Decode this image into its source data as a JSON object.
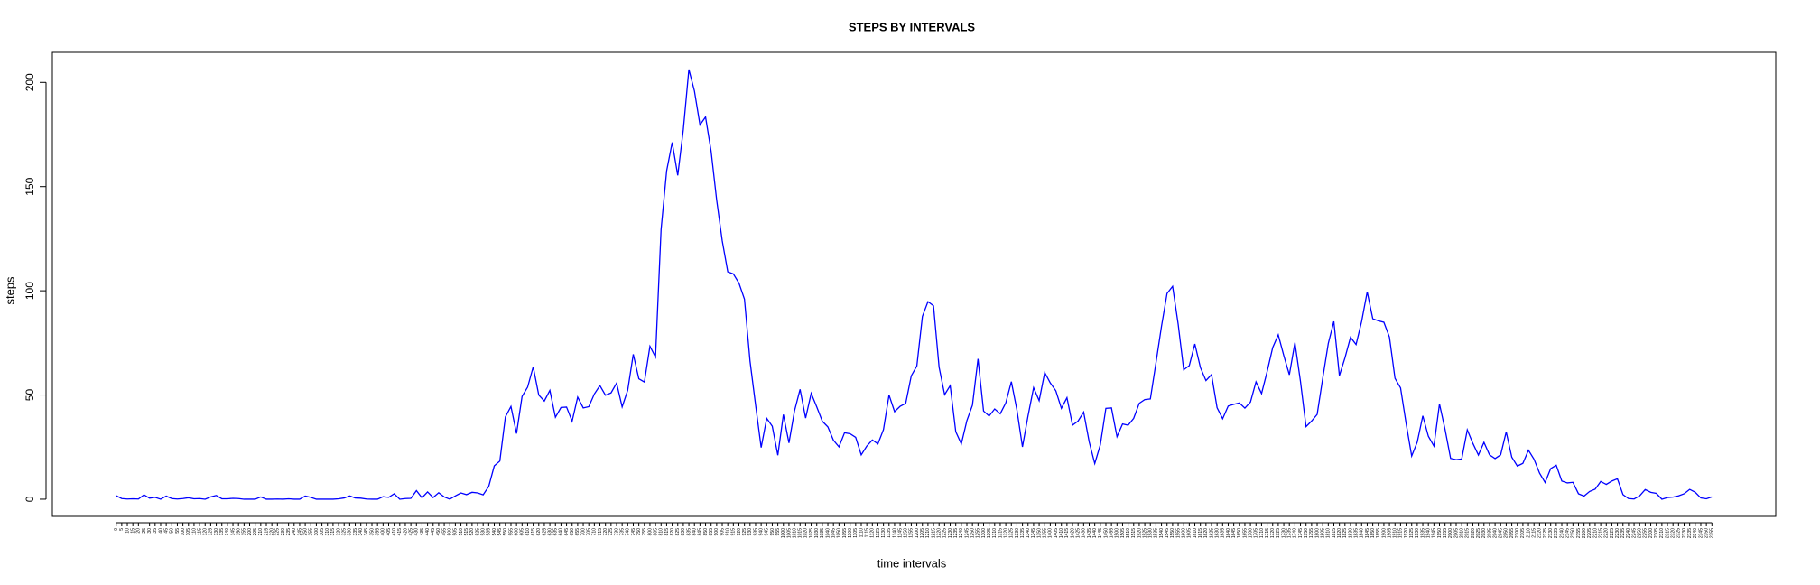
{
  "chart_data": {
    "type": "line",
    "title": "STEPS BY INTERVALS",
    "x_label": "time intervals",
    "y_label": "steps",
    "categories": [
      "0",
      "5",
      "10",
      "15",
      "20",
      "25",
      "30",
      "35",
      "40",
      "45",
      "50",
      "55",
      "100",
      "105",
      "110",
      "115",
      "120",
      "125",
      "130",
      "135",
      "140",
      "145",
      "150",
      "155",
      "200",
      "205",
      "210",
      "215",
      "220",
      "225",
      "230",
      "235",
      "240",
      "245",
      "250",
      "255",
      "300",
      "305",
      "310",
      "315",
      "320",
      "325",
      "330",
      "335",
      "340",
      "345",
      "350",
      "355",
      "400",
      "405",
      "410",
      "415",
      "420",
      "425",
      "430",
      "435",
      "440",
      "445",
      "450",
      "455",
      "500",
      "505",
      "510",
      "515",
      "520",
      "525",
      "530",
      "535",
      "540",
      "545",
      "550",
      "555",
      "600",
      "605",
      "610",
      "615",
      "620",
      "625",
      "630",
      "635",
      "640",
      "645",
      "650",
      "655",
      "700",
      "705",
      "710",
      "715",
      "720",
      "725",
      "730",
      "735",
      "740",
      "745",
      "750",
      "755",
      "800",
      "805",
      "810",
      "815",
      "820",
      "825",
      "830",
      "835",
      "840",
      "845",
      "850",
      "855",
      "900",
      "905",
      "910",
      "915",
      "920",
      "925",
      "930",
      "935",
      "940",
      "945",
      "950",
      "955",
      "1000",
      "1005",
      "1010",
      "1015",
      "1020",
      "1025",
      "1030",
      "1035",
      "1040",
      "1045",
      "1050",
      "1055",
      "1100",
      "1105",
      "1110",
      "1115",
      "1120",
      "1125",
      "1130",
      "1135",
      "1140",
      "1145",
      "1150",
      "1155",
      "1200",
      "1205",
      "1210",
      "1215",
      "1220",
      "1225",
      "1230",
      "1235",
      "1240",
      "1245",
      "1250",
      "1255",
      "1300",
      "1305",
      "1310",
      "1315",
      "1320",
      "1325",
      "1330",
      "1335",
      "1340",
      "1345",
      "1350",
      "1355",
      "1400",
      "1405",
      "1410",
      "1415",
      "1420",
      "1425",
      "1430",
      "1435",
      "1440",
      "1445",
      "1450",
      "1455",
      "1500",
      "1505",
      "1510",
      "1515",
      "1520",
      "1525",
      "1530",
      "1535",
      "1540",
      "1545",
      "1550",
      "1555",
      "1600",
      "1605",
      "1610",
      "1615",
      "1620",
      "1625",
      "1630",
      "1635",
      "1640",
      "1645",
      "1650",
      "1655",
      "1700",
      "1705",
      "1710",
      "1715",
      "1720",
      "1725",
      "1730",
      "1735",
      "1740",
      "1745",
      "1750",
      "1755",
      "1800",
      "1805",
      "1810",
      "1815",
      "1820",
      "1825",
      "1830",
      "1835",
      "1840",
      "1845",
      "1850",
      "1855",
      "1900",
      "1905",
      "1910",
      "1915",
      "1920",
      "1925",
      "1930",
      "1935",
      "1940",
      "1945",
      "1950",
      "1955",
      "2000",
      "2005",
      "2010",
      "2015",
      "2020",
      "2025",
      "2030",
      "2035",
      "2040",
      "2045",
      "2050",
      "2055",
      "2100",
      "2105",
      "2110",
      "2115",
      "2120",
      "2125",
      "2130",
      "2135",
      "2140",
      "2145",
      "2150",
      "2155",
      "2200",
      "2205",
      "2210",
      "2215",
      "2220",
      "2225",
      "2230",
      "2235",
      "2240",
      "2245",
      "2250",
      "2255",
      "2300",
      "2305",
      "2310",
      "2315",
      "2320",
      "2325",
      "2330",
      "2335",
      "2340",
      "2345",
      "2350",
      "2355"
    ],
    "series": [
      {
        "name": "steps",
        "color": "#0000ff",
        "values": [
          1.7,
          0.3,
          0.1,
          0.2,
          0.1,
          2.1,
          0.5,
          0.9,
          0,
          1.5,
          0.3,
          0.1,
          0.3,
          0.7,
          0.2,
          0.3,
          0,
          1.1,
          1.8,
          0.2,
          0.2,
          0.4,
          0.3,
          0,
          0,
          0,
          1.1,
          0,
          0,
          0.1,
          0,
          0.2,
          0,
          0,
          1.5,
          0.9,
          0,
          0,
          0,
          0,
          0.2,
          0.6,
          1.6,
          0.6,
          0.5,
          0.1,
          0,
          0,
          1.2,
          0.9,
          2.6,
          0,
          0.3,
          0.4,
          4.1,
          0.7,
          3.5,
          0.8,
          3.1,
          1.1,
          0,
          1.6,
          3,
          2.2,
          3.3,
          3,
          2.1,
          6.1,
          16,
          18.3,
          39.5,
          44.5,
          31.5,
          49.3,
          53.8,
          63.5,
          50,
          47.1,
          52.2,
          39.3,
          44,
          44.2,
          37.4,
          49,
          43.8,
          44.4,
          50.5,
          54.5,
          49.9,
          51,
          55.7,
          44.3,
          52.3,
          69.5,
          57.8,
          56.2,
          73.4,
          68.2,
          129.4,
          157.5,
          171.2,
          155.4,
          177.3,
          206.2,
          195.9,
          179.6,
          183.4,
          167,
          143.5,
          124,
          109.1,
          108.1,
          103.7,
          96,
          66.2,
          45.2,
          24.8,
          38.8,
          35,
          21.1,
          40.6,
          27,
          42.4,
          52.7,
          38.9,
          50.8,
          44.3,
          37.4,
          34.7,
          28.3,
          25.1,
          31.9,
          31.4,
          29.7,
          21.3,
          25.5,
          28.4,
          26.5,
          33.4,
          50,
          42,
          44.6,
          46,
          59.2,
          63.9,
          87.7,
          94.8,
          92.8,
          63.4,
          50.2,
          54.5,
          32.4,
          26.5,
          37.7,
          45.1,
          67.3,
          42.3,
          39.9,
          43.3,
          41,
          46.2,
          56.4,
          42.8,
          25.1,
          40,
          53.5,
          47.3,
          60.8,
          55.8,
          52,
          43.6,
          48.7,
          35.5,
          37.5,
          41.8,
          27.5,
          17.1,
          26.1,
          43.6,
          43.8,
          30,
          36.1,
          35.5,
          38.8,
          46,
          47.8,
          48.1,
          65.3,
          82.9,
          98.7,
          102.1,
          84,
          62.1,
          64.1,
          74.5,
          63.2,
          56.9,
          59.8,
          43.9,
          38.6,
          44.7,
          45.5,
          46.2,
          43.7,
          46.6,
          56.3,
          50.7,
          61.2,
          72.7,
          78.9,
          68.9,
          59.7,
          75.1,
          56.5,
          34.8,
          37.5,
          40.7,
          58,
          74.7,
          85.3,
          59.3,
          67.8,
          77.7,
          74.2,
          85.3,
          99.5,
          86.6,
          85.6,
          84.9,
          77.8,
          58,
          53.4,
          36.3,
          20.7,
          27.4,
          40,
          30.2,
          25.5,
          45.7,
          33.5,
          19.6,
          19,
          19.3,
          33.3,
          26.8,
          21.2,
          27.3,
          21.3,
          19.5,
          21.3,
          32.3,
          20.2,
          15.9,
          17.2,
          23.5,
          19.2,
          12.5,
          8,
          14.7,
          16.3,
          8.7,
          7.8,
          8.1,
          2.6,
          1.5,
          3.7,
          4.8,
          8.5,
          7.1,
          8.7,
          9.8,
          2.2,
          0.3,
          0.1,
          1.6,
          4.6,
          3.3,
          2.8,
          0,
          0.8,
          1,
          1.6,
          2.6,
          4.7,
          3.3,
          0.6,
          0.2,
          1.1
        ]
      }
    ],
    "ylim": [
      -8.25,
      214.42
    ],
    "yticks": [
      0,
      50,
      100,
      150,
      200
    ],
    "grid": false
  }
}
